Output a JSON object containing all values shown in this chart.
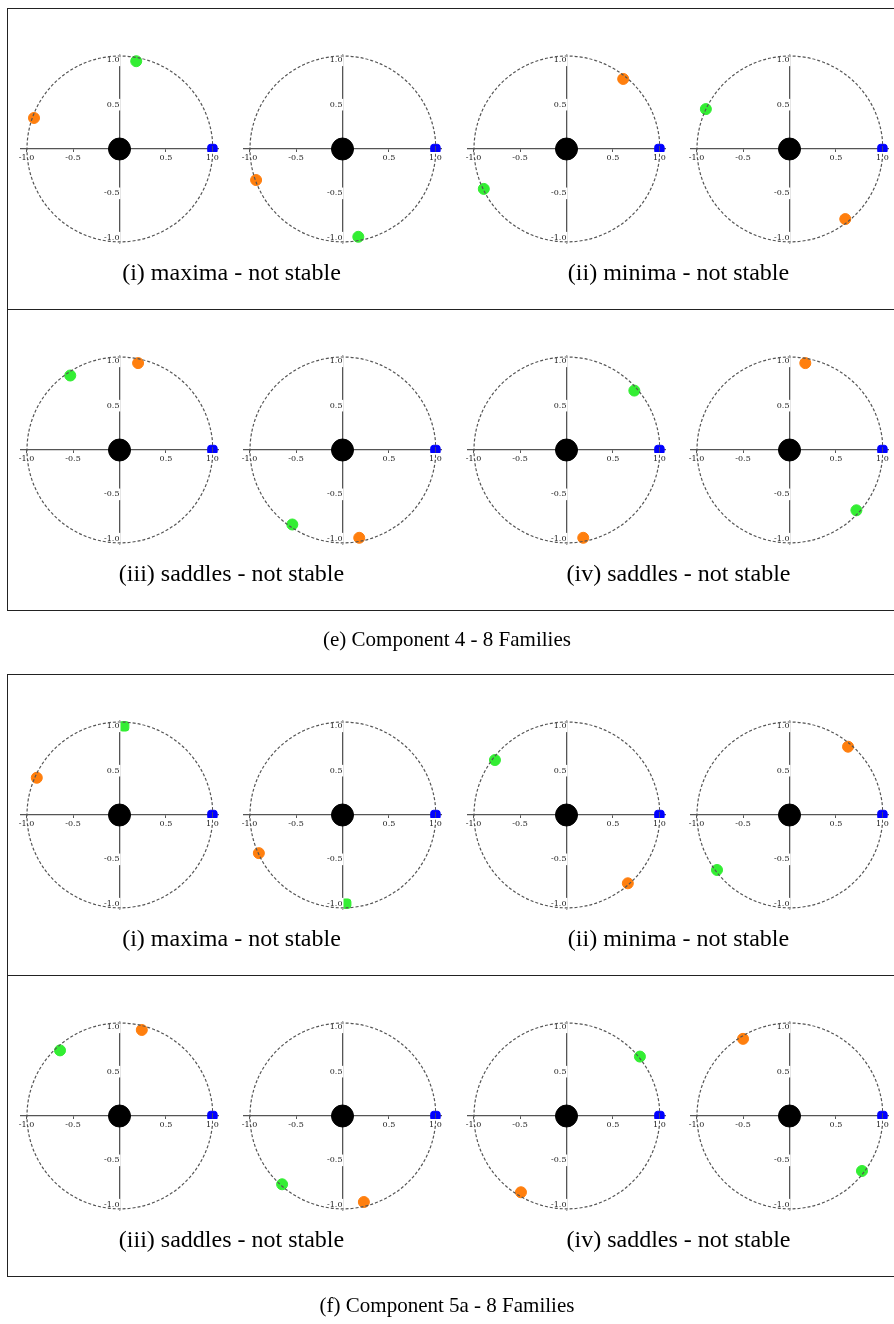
{
  "chart_data": [
    {
      "type": "scatter",
      "title": "(i) maxima - not stable",
      "xlim": [
        -1.06,
        1.06
      ],
      "ylim": [
        -1.06,
        1.06
      ],
      "xticks": [
        {
          "value": -1,
          "label": "-1.0"
        },
        {
          "value": -0.5,
          "label": "-0.5"
        },
        {
          "value": 0.5,
          "label": "0.5"
        },
        {
          "value": 1,
          "label": "1.0"
        }
      ],
      "yticks": [
        {
          "value": -1,
          "label": "-1.0"
        },
        {
          "value": -0.5,
          "label": "-0.5"
        },
        {
          "value": 0.5,
          "label": "0.5"
        },
        {
          "value": 1,
          "label": "1.0"
        }
      ],
      "series": [
        {
          "type": "bubble",
          "color": "#000000",
          "x": [
            0
          ],
          "values": [
            0
          ],
          "sizes": [
            1
          ]
        },
        {
          "color": "#0000ff",
          "marker": "square",
          "x": [
            1
          ],
          "values": [
            0
          ]
        },
        {
          "color": "#ff7f0e",
          "marker": "circle",
          "x": [
            -0.92
          ],
          "values": [
            0.35
          ]
        },
        {
          "color": "#33ee33",
          "marker": "circle",
          "x": [
            0.18
          ],
          "values": [
            0.99
          ]
        }
      ]
    },
    {
      "type": "scatter",
      "xlim": [
        -1.06,
        1.06
      ],
      "ylim": [
        -1.06,
        1.06
      ],
      "xticks": [
        {
          "value": -1,
          "label": "-1.0"
        },
        {
          "value": -0.5,
          "label": "-0.5"
        },
        {
          "value": 0.5,
          "label": "0.5"
        },
        {
          "value": 1,
          "label": "1.0"
        }
      ],
      "yticks": [
        {
          "value": -1,
          "label": "-1.0"
        },
        {
          "value": -0.5,
          "label": "-0.5"
        },
        {
          "value": 0.5,
          "label": "0.5"
        },
        {
          "value": 1,
          "label": "1.0"
        }
      ],
      "series": [
        {
          "type": "bubble",
          "color": "#000000",
          "x": [
            0
          ],
          "values": [
            0
          ],
          "sizes": [
            1
          ]
        },
        {
          "color": "#0000ff",
          "marker": "square",
          "x": [
            1
          ],
          "values": [
            0
          ]
        },
        {
          "color": "#ff7f0e",
          "marker": "circle",
          "x": [
            -0.93
          ],
          "values": [
            -0.35
          ]
        },
        {
          "color": "#33ee33",
          "marker": "circle",
          "x": [
            0.17
          ],
          "values": [
            -0.99
          ]
        }
      ]
    },
    {
      "type": "scatter",
      "title": "(ii) minima - not stable",
      "xlim": [
        -1.06,
        1.06
      ],
      "ylim": [
        -1.06,
        1.06
      ],
      "xticks": [
        {
          "value": -1,
          "label": "-1.0"
        },
        {
          "value": -0.5,
          "label": "-0.5"
        },
        {
          "value": 0.5,
          "label": "0.5"
        },
        {
          "value": 1,
          "label": "1.0"
        }
      ],
      "yticks": [
        {
          "value": -1,
          "label": "-1.0"
        },
        {
          "value": -0.5,
          "label": "-0.5"
        },
        {
          "value": 0.5,
          "label": "0.5"
        },
        {
          "value": 1,
          "label": "1.0"
        }
      ],
      "series": [
        {
          "type": "bubble",
          "color": "#000000",
          "x": [
            0
          ],
          "values": [
            0
          ],
          "sizes": [
            1
          ]
        },
        {
          "color": "#0000ff",
          "marker": "square",
          "x": [
            1
          ],
          "values": [
            0
          ]
        },
        {
          "color": "#ff7f0e",
          "marker": "circle",
          "x": [
            0.61
          ],
          "values": [
            0.79
          ]
        },
        {
          "color": "#33ee33",
          "marker": "circle",
          "x": [
            -0.89
          ],
          "values": [
            -0.45
          ]
        }
      ]
    },
    {
      "type": "scatter",
      "xlim": [
        -1.06,
        1.06
      ],
      "ylim": [
        -1.06,
        1.06
      ],
      "xticks": [
        {
          "value": -1,
          "label": "-1.0"
        },
        {
          "value": -0.5,
          "label": "-0.5"
        },
        {
          "value": 0.5,
          "label": "0.5"
        },
        {
          "value": 1,
          "label": "1.0"
        }
      ],
      "yticks": [
        {
          "value": -1,
          "label": "-1.0"
        },
        {
          "value": -0.5,
          "label": "-0.5"
        },
        {
          "value": 0.5,
          "label": "0.5"
        },
        {
          "value": 1,
          "label": "1.0"
        }
      ],
      "series": [
        {
          "type": "bubble",
          "color": "#000000",
          "x": [
            0
          ],
          "values": [
            0
          ],
          "sizes": [
            1
          ]
        },
        {
          "color": "#0000ff",
          "marker": "square",
          "x": [
            1
          ],
          "values": [
            0
          ]
        },
        {
          "color": "#ff7f0e",
          "marker": "circle",
          "x": [
            0.6
          ],
          "values": [
            -0.79
          ]
        },
        {
          "color": "#33ee33",
          "marker": "circle",
          "x": [
            -0.9
          ],
          "values": [
            0.45
          ]
        }
      ]
    },
    {
      "type": "scatter",
      "title": "(iii) saddles - not stable",
      "xlim": [
        -1.06,
        1.06
      ],
      "ylim": [
        -1.06,
        1.06
      ],
      "xticks": [
        {
          "value": -1,
          "label": "-1.0"
        },
        {
          "value": -0.5,
          "label": "-0.5"
        },
        {
          "value": 0.5,
          "label": "0.5"
        },
        {
          "value": 1,
          "label": "1.0"
        }
      ],
      "yticks": [
        {
          "value": -1,
          "label": "-1.0"
        },
        {
          "value": -0.5,
          "label": "-0.5"
        },
        {
          "value": 0.5,
          "label": "0.5"
        },
        {
          "value": 1,
          "label": "1.0"
        }
      ],
      "series": [
        {
          "type": "bubble",
          "color": "#000000",
          "x": [
            0
          ],
          "values": [
            0
          ],
          "sizes": [
            1
          ]
        },
        {
          "color": "#0000ff",
          "marker": "square",
          "x": [
            1
          ],
          "values": [
            0
          ]
        },
        {
          "color": "#ff7f0e",
          "marker": "circle",
          "x": [
            0.2
          ],
          "values": [
            0.98
          ]
        },
        {
          "color": "#33ee33",
          "marker": "circle",
          "x": [
            -0.53
          ],
          "values": [
            0.84
          ]
        }
      ]
    },
    {
      "type": "scatter",
      "xlim": [
        -1.06,
        1.06
      ],
      "ylim": [
        -1.06,
        1.06
      ],
      "xticks": [
        {
          "value": -1,
          "label": "-1.0"
        },
        {
          "value": -0.5,
          "label": "-0.5"
        },
        {
          "value": 0.5,
          "label": "0.5"
        },
        {
          "value": 1,
          "label": "1.0"
        }
      ],
      "yticks": [
        {
          "value": -1,
          "label": "-1.0"
        },
        {
          "value": -0.5,
          "label": "-0.5"
        },
        {
          "value": 0.5,
          "label": "0.5"
        },
        {
          "value": 1,
          "label": "1.0"
        }
      ],
      "series": [
        {
          "type": "bubble",
          "color": "#000000",
          "x": [
            0
          ],
          "values": [
            0
          ],
          "sizes": [
            1
          ]
        },
        {
          "color": "#0000ff",
          "marker": "square",
          "x": [
            1
          ],
          "values": [
            0
          ]
        },
        {
          "color": "#ff7f0e",
          "marker": "circle",
          "x": [
            0.18
          ],
          "values": [
            -0.99
          ]
        },
        {
          "color": "#33ee33",
          "marker": "circle",
          "x": [
            -0.54
          ],
          "values": [
            -0.84
          ]
        }
      ]
    },
    {
      "type": "scatter",
      "title": "(iv) saddles - not stable",
      "xlim": [
        -1.06,
        1.06
      ],
      "ylim": [
        -1.06,
        1.06
      ],
      "xticks": [
        {
          "value": -1,
          "label": "-1.0"
        },
        {
          "value": -0.5,
          "label": "-0.5"
        },
        {
          "value": 0.5,
          "label": "0.5"
        },
        {
          "value": 1,
          "label": "1.0"
        }
      ],
      "yticks": [
        {
          "value": -1,
          "label": "-1.0"
        },
        {
          "value": -0.5,
          "label": "-0.5"
        },
        {
          "value": 0.5,
          "label": "0.5"
        },
        {
          "value": 1,
          "label": "1.0"
        }
      ],
      "series": [
        {
          "type": "bubble",
          "color": "#000000",
          "x": [
            0
          ],
          "values": [
            0
          ],
          "sizes": [
            1
          ]
        },
        {
          "color": "#0000ff",
          "marker": "square",
          "x": [
            1
          ],
          "values": [
            0
          ]
        },
        {
          "color": "#ff7f0e",
          "marker": "circle",
          "x": [
            0.18
          ],
          "values": [
            -0.99
          ]
        },
        {
          "color": "#33ee33",
          "marker": "circle",
          "x": [
            0.73
          ],
          "values": [
            0.67
          ]
        }
      ]
    },
    {
      "type": "scatter",
      "annotations": [
        "(e) Component 4 - 8 Families"
      ],
      "xlim": [
        -1.06,
        1.06
      ],
      "ylim": [
        -1.06,
        1.06
      ],
      "xticks": [
        {
          "value": -1,
          "label": "-1.0"
        },
        {
          "value": -0.5,
          "label": "-0.5"
        },
        {
          "value": 0.5,
          "label": "0.5"
        },
        {
          "value": 1,
          "label": "1.0"
        }
      ],
      "yticks": [
        {
          "value": -1,
          "label": "-1.0"
        },
        {
          "value": -0.5,
          "label": "-0.5"
        },
        {
          "value": 0.5,
          "label": "0.5"
        },
        {
          "value": 1,
          "label": "1.0"
        }
      ],
      "series": [
        {
          "type": "bubble",
          "color": "#000000",
          "x": [
            0
          ],
          "values": [
            0
          ],
          "sizes": [
            1
          ]
        },
        {
          "color": "#0000ff",
          "marker": "square",
          "x": [
            1
          ],
          "values": [
            0
          ]
        },
        {
          "color": "#ff7f0e",
          "marker": "circle",
          "x": [
            0.17
          ],
          "values": [
            0.98
          ]
        },
        {
          "color": "#33ee33",
          "marker": "circle",
          "x": [
            0.72
          ],
          "values": [
            -0.68
          ]
        }
      ]
    },
    {
      "type": "scatter",
      "title": "(i) maxima - not stable",
      "xlim": [
        -1.06,
        1.06
      ],
      "ylim": [
        -1.06,
        1.06
      ],
      "xticks": [
        {
          "value": -1,
          "label": "-1.0"
        },
        {
          "value": -0.5,
          "label": "-0.5"
        },
        {
          "value": 0.5,
          "label": "0.5"
        },
        {
          "value": 1,
          "label": "1.0"
        }
      ],
      "yticks": [
        {
          "value": -1,
          "label": "-1.0"
        },
        {
          "value": -0.5,
          "label": "-0.5"
        },
        {
          "value": 0.5,
          "label": "0.5"
        },
        {
          "value": 1,
          "label": "1.0"
        }
      ],
      "series": [
        {
          "type": "bubble",
          "color": "#000000",
          "x": [
            0
          ],
          "values": [
            0
          ],
          "sizes": [
            1
          ]
        },
        {
          "color": "#0000ff",
          "marker": "square",
          "x": [
            1
          ],
          "values": [
            0
          ]
        },
        {
          "color": "#ff7f0e",
          "marker": "circle",
          "x": [
            -0.89
          ],
          "values": [
            0.42
          ]
        },
        {
          "color": "#33ee33",
          "marker": "square",
          "x": [
            0.05
          ],
          "values": [
            1
          ]
        }
      ]
    },
    {
      "type": "scatter",
      "xlim": [
        -1.06,
        1.06
      ],
      "ylim": [
        -1.06,
        1.06
      ],
      "xticks": [
        {
          "value": -1,
          "label": "-1.0"
        },
        {
          "value": -0.5,
          "label": "-0.5"
        },
        {
          "value": 0.5,
          "label": "0.5"
        },
        {
          "value": 1,
          "label": "1.0"
        }
      ],
      "yticks": [
        {
          "value": -1,
          "label": "-1.0"
        },
        {
          "value": -0.5,
          "label": "-0.5"
        },
        {
          "value": 0.5,
          "label": "0.5"
        },
        {
          "value": 1,
          "label": "1.0"
        }
      ],
      "series": [
        {
          "type": "bubble",
          "color": "#000000",
          "x": [
            0
          ],
          "values": [
            0
          ],
          "sizes": [
            1
          ]
        },
        {
          "color": "#0000ff",
          "marker": "square",
          "x": [
            1
          ],
          "values": [
            0
          ]
        },
        {
          "color": "#ff7f0e",
          "marker": "circle",
          "x": [
            -0.9
          ],
          "values": [
            -0.43
          ]
        },
        {
          "color": "#33ee33",
          "marker": "square",
          "x": [
            0.04
          ],
          "values": [
            -1
          ]
        }
      ]
    },
    {
      "type": "scatter",
      "title": "(ii) minima - not stable",
      "xlim": [
        -1.06,
        1.06
      ],
      "ylim": [
        -1.06,
        1.06
      ],
      "xticks": [
        {
          "value": -1,
          "label": "-1.0"
        },
        {
          "value": -0.5,
          "label": "-0.5"
        },
        {
          "value": 0.5,
          "label": "0.5"
        },
        {
          "value": 1,
          "label": "1.0"
        }
      ],
      "yticks": [
        {
          "value": -1,
          "label": "-1.0"
        },
        {
          "value": -0.5,
          "label": "-0.5"
        },
        {
          "value": 0.5,
          "label": "0.5"
        },
        {
          "value": 1,
          "label": "1.0"
        }
      ],
      "series": [
        {
          "type": "bubble",
          "color": "#000000",
          "x": [
            0
          ],
          "values": [
            0
          ],
          "sizes": [
            1
          ]
        },
        {
          "color": "#0000ff",
          "marker": "square",
          "x": [
            1
          ],
          "values": [
            0
          ]
        },
        {
          "color": "#ff7f0e",
          "marker": "circle",
          "x": [
            0.66
          ],
          "values": [
            -0.77
          ]
        },
        {
          "color": "#33ee33",
          "marker": "circle",
          "x": [
            -0.77
          ],
          "values": [
            0.62
          ]
        }
      ]
    },
    {
      "type": "scatter",
      "xlim": [
        -1.06,
        1.06
      ],
      "ylim": [
        -1.06,
        1.06
      ],
      "xticks": [
        {
          "value": -1,
          "label": "-1.0"
        },
        {
          "value": -0.5,
          "label": "-0.5"
        },
        {
          "value": 0.5,
          "label": "0.5"
        },
        {
          "value": 1,
          "label": "1.0"
        }
      ],
      "yticks": [
        {
          "value": -1,
          "label": "-1.0"
        },
        {
          "value": -0.5,
          "label": "-0.5"
        },
        {
          "value": 0.5,
          "label": "0.5"
        },
        {
          "value": 1,
          "label": "1.0"
        }
      ],
      "series": [
        {
          "type": "bubble",
          "color": "#000000",
          "x": [
            0
          ],
          "values": [
            0
          ],
          "sizes": [
            1
          ]
        },
        {
          "color": "#0000ff",
          "marker": "square",
          "x": [
            1
          ],
          "values": [
            0
          ]
        },
        {
          "color": "#ff7f0e",
          "marker": "circle",
          "x": [
            0.63
          ],
          "values": [
            0.77
          ]
        },
        {
          "color": "#33ee33",
          "marker": "circle",
          "x": [
            -0.78
          ],
          "values": [
            -0.62
          ]
        }
      ]
    },
    {
      "type": "scatter",
      "title": "(iii) saddles - not stable",
      "xlim": [
        -1.06,
        1.06
      ],
      "ylim": [
        -1.06,
        1.06
      ],
      "xticks": [
        {
          "value": -1,
          "label": "-1.0"
        },
        {
          "value": -0.5,
          "label": "-0.5"
        },
        {
          "value": 0.5,
          "label": "0.5"
        },
        {
          "value": 1,
          "label": "1.0"
        }
      ],
      "yticks": [
        {
          "value": -1,
          "label": "-1.0"
        },
        {
          "value": -0.5,
          "label": "-0.5"
        },
        {
          "value": 0.5,
          "label": "0.5"
        },
        {
          "value": 1,
          "label": "1.0"
        }
      ],
      "series": [
        {
          "type": "bubble",
          "color": "#000000",
          "x": [
            0
          ],
          "values": [
            0
          ],
          "sizes": [
            1
          ]
        },
        {
          "color": "#0000ff",
          "marker": "square",
          "x": [
            1
          ],
          "values": [
            0
          ]
        },
        {
          "color": "#ff7f0e",
          "marker": "circle",
          "x": [
            0.24
          ],
          "values": [
            0.97
          ]
        },
        {
          "color": "#33ee33",
          "marker": "circle",
          "x": [
            -0.64
          ],
          "values": [
            0.74
          ]
        }
      ]
    },
    {
      "type": "scatter",
      "xlim": [
        -1.06,
        1.06
      ],
      "ylim": [
        -1.06,
        1.06
      ],
      "xticks": [
        {
          "value": -1,
          "label": "-1.0"
        },
        {
          "value": -0.5,
          "label": "-0.5"
        },
        {
          "value": 0.5,
          "label": "0.5"
        },
        {
          "value": 1,
          "label": "1.0"
        }
      ],
      "yticks": [
        {
          "value": -1,
          "label": "-1.0"
        },
        {
          "value": -0.5,
          "label": "-0.5"
        },
        {
          "value": 0.5,
          "label": "0.5"
        },
        {
          "value": 1,
          "label": "1.0"
        }
      ],
      "series": [
        {
          "type": "bubble",
          "color": "#000000",
          "x": [
            0
          ],
          "values": [
            0
          ],
          "sizes": [
            1
          ]
        },
        {
          "color": "#0000ff",
          "marker": "square",
          "x": [
            1
          ],
          "values": [
            0
          ]
        },
        {
          "color": "#ff7f0e",
          "marker": "circle",
          "x": [
            0.23
          ],
          "values": [
            -0.97
          ]
        },
        {
          "color": "#33ee33",
          "marker": "circle",
          "x": [
            -0.65
          ],
          "values": [
            -0.77
          ]
        }
      ]
    },
    {
      "type": "scatter",
      "title": "(iv) saddles - not stable",
      "xlim": [
        -1.06,
        1.06
      ],
      "ylim": [
        -1.06,
        1.06
      ],
      "xticks": [
        {
          "value": -1,
          "label": "-1.0"
        },
        {
          "value": -0.5,
          "label": "-0.5"
        },
        {
          "value": 0.5,
          "label": "0.5"
        },
        {
          "value": 1,
          "label": "1.0"
        }
      ],
      "yticks": [
        {
          "value": -1,
          "label": "-1.0"
        },
        {
          "value": -0.5,
          "label": "-0.5"
        },
        {
          "value": 0.5,
          "label": "0.5"
        },
        {
          "value": 1,
          "label": "1.0"
        }
      ],
      "series": [
        {
          "type": "bubble",
          "color": "#000000",
          "x": [
            0
          ],
          "values": [
            0
          ],
          "sizes": [
            1
          ]
        },
        {
          "color": "#0000ff",
          "marker": "square",
          "x": [
            1
          ],
          "values": [
            0
          ]
        },
        {
          "color": "#ff7f0e",
          "marker": "circle",
          "x": [
            -0.49
          ],
          "values": [
            -0.86
          ]
        },
        {
          "color": "#33ee33",
          "marker": "circle",
          "x": [
            0.79
          ],
          "values": [
            0.67
          ]
        }
      ]
    },
    {
      "type": "scatter",
      "annotations": [
        "(f) Component 5a - 8 Families"
      ],
      "xlim": [
        -1.06,
        1.06
      ],
      "ylim": [
        -1.06,
        1.06
      ],
      "xticks": [
        {
          "value": -1,
          "label": "-1.0"
        },
        {
          "value": -0.5,
          "label": "-0.5"
        },
        {
          "value": 0.5,
          "label": "0.5"
        },
        {
          "value": 1,
          "label": "1.0"
        }
      ],
      "yticks": [
        {
          "value": -1,
          "label": "-1.0"
        },
        {
          "value": -0.5,
          "label": "-0.5"
        },
        {
          "value": 0.5,
          "label": "0.5"
        },
        {
          "value": 1,
          "label": "1.0"
        }
      ],
      "series": [
        {
          "type": "bubble",
          "color": "#000000",
          "x": [
            0
          ],
          "values": [
            0
          ],
          "sizes": [
            1
          ]
        },
        {
          "color": "#0000ff",
          "marker": "square",
          "x": [
            1
          ],
          "values": [
            0
          ]
        },
        {
          "color": "#ff7f0e",
          "marker": "circle",
          "x": [
            -0.5
          ],
          "values": [
            0.87
          ]
        },
        {
          "color": "#33ee33",
          "marker": "circle",
          "x": [
            0.78
          ],
          "values": [
            -0.62
          ]
        }
      ]
    }
  ]
}
